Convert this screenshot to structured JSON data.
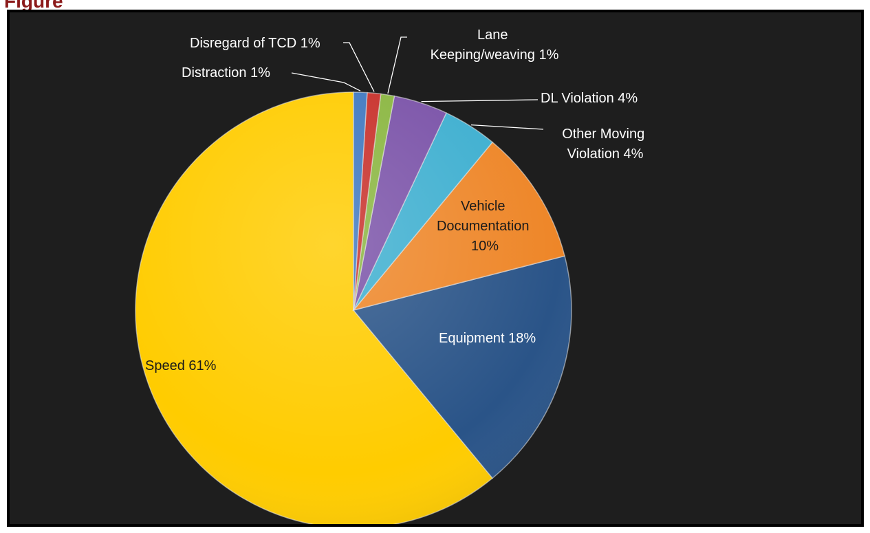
{
  "chart_data": {
    "type": "pie",
    "title": "",
    "series": [
      {
        "label": "Speed 61%",
        "value": 61,
        "color": "#FFCC00"
      },
      {
        "label": "Equipment 18%",
        "value": 18,
        "color": "#2A5488"
      },
      {
        "label": "Vehicle Documentation 10%",
        "value": 10,
        "color": "#EE8628"
      },
      {
        "label": "Other Moving Violation 4%",
        "value": 4,
        "color": "#3EAFD0"
      },
      {
        "label": "DL Violation 4%",
        "value": 4,
        "color": "#7A52A8"
      },
      {
        "label": "Lane Keeping/weaving 1%",
        "value": 1,
        "color": "#8AB640"
      },
      {
        "label": "Disregard of TCD 1%",
        "value": 1,
        "color": "#C8302A"
      },
      {
        "label": "Distraction 1%",
        "value": 1,
        "color": "#3F78C0"
      }
    ],
    "label_lines": {
      "speed": [
        "Speed 61%"
      ],
      "equipment": [
        "Equipment 18%"
      ],
      "vehicle_documentation": [
        "Vehicle",
        "Documentation",
        "10%"
      ],
      "other_moving": [
        "Other Moving",
        "Violation 4%"
      ],
      "dl_violation": [
        "DL Violation 4%"
      ],
      "lane_keeping": [
        "Lane",
        "Keeping/weaving 1%"
      ],
      "disregard_tcd": [
        "Disregard of TCD 1%"
      ],
      "distraction": [
        "Distraction 1%"
      ]
    },
    "background": "#1E1E1E",
    "legend": "none"
  }
}
